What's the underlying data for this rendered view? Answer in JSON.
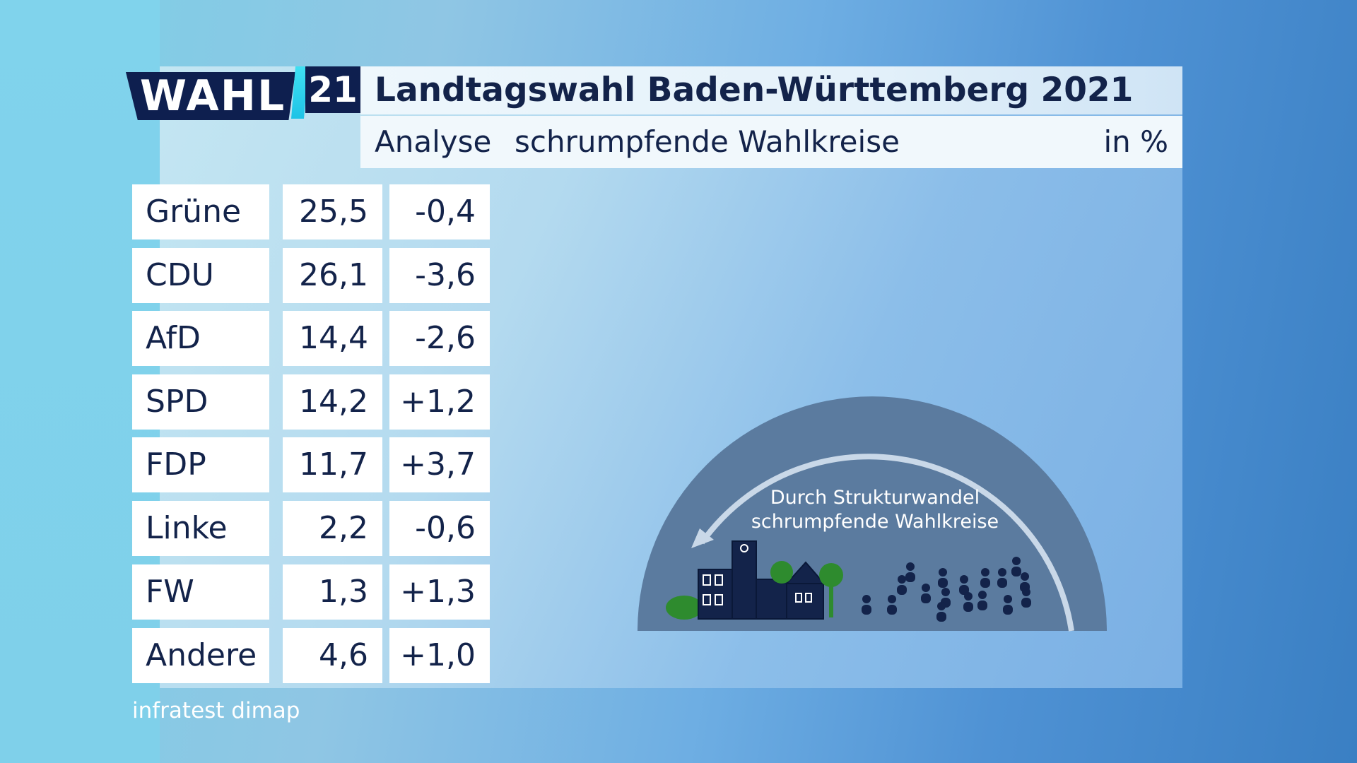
{
  "logo": {
    "wahl": "WAHL",
    "year": "21"
  },
  "header": {
    "title": "Landtagswahl Baden-Württemberg 2021",
    "subtitle_left": "Analyse",
    "subtitle_middle": "schrumpfende Wahlkreise",
    "subtitle_unit": "in %"
  },
  "table": {
    "rows": [
      {
        "party": "Grüne",
        "value": "25,5",
        "change": "-0,4"
      },
      {
        "party": "CDU",
        "value": "26,1",
        "change": "-3,6"
      },
      {
        "party": "AfD",
        "value": "14,4",
        "change": "-2,6"
      },
      {
        "party": "SPD",
        "value": "14,2",
        "change": "+1,2"
      },
      {
        "party": "FDP",
        "value": "11,7",
        "change": "+3,7"
      },
      {
        "party": "Linke",
        "value": "2,2",
        "change": "-0,6"
      },
      {
        "party": "FW",
        "value": "1,3",
        "change": "+1,3"
      },
      {
        "party": "Andere",
        "value": "4,6",
        "change": "+1,0"
      }
    ]
  },
  "illustration": {
    "line1": "Durch Strukturwandel",
    "line2": "schrumpfende Wahlkreise",
    "colors": {
      "dome": "#5a7a9e",
      "buildings": "#13234a",
      "trees": "#2e8b2e",
      "arrow": "#c9d7e6"
    }
  },
  "source": "infratest dimap",
  "colors": {
    "navy": "#0e1f4f",
    "accent": "#29d3ec",
    "text": "#13234a"
  }
}
